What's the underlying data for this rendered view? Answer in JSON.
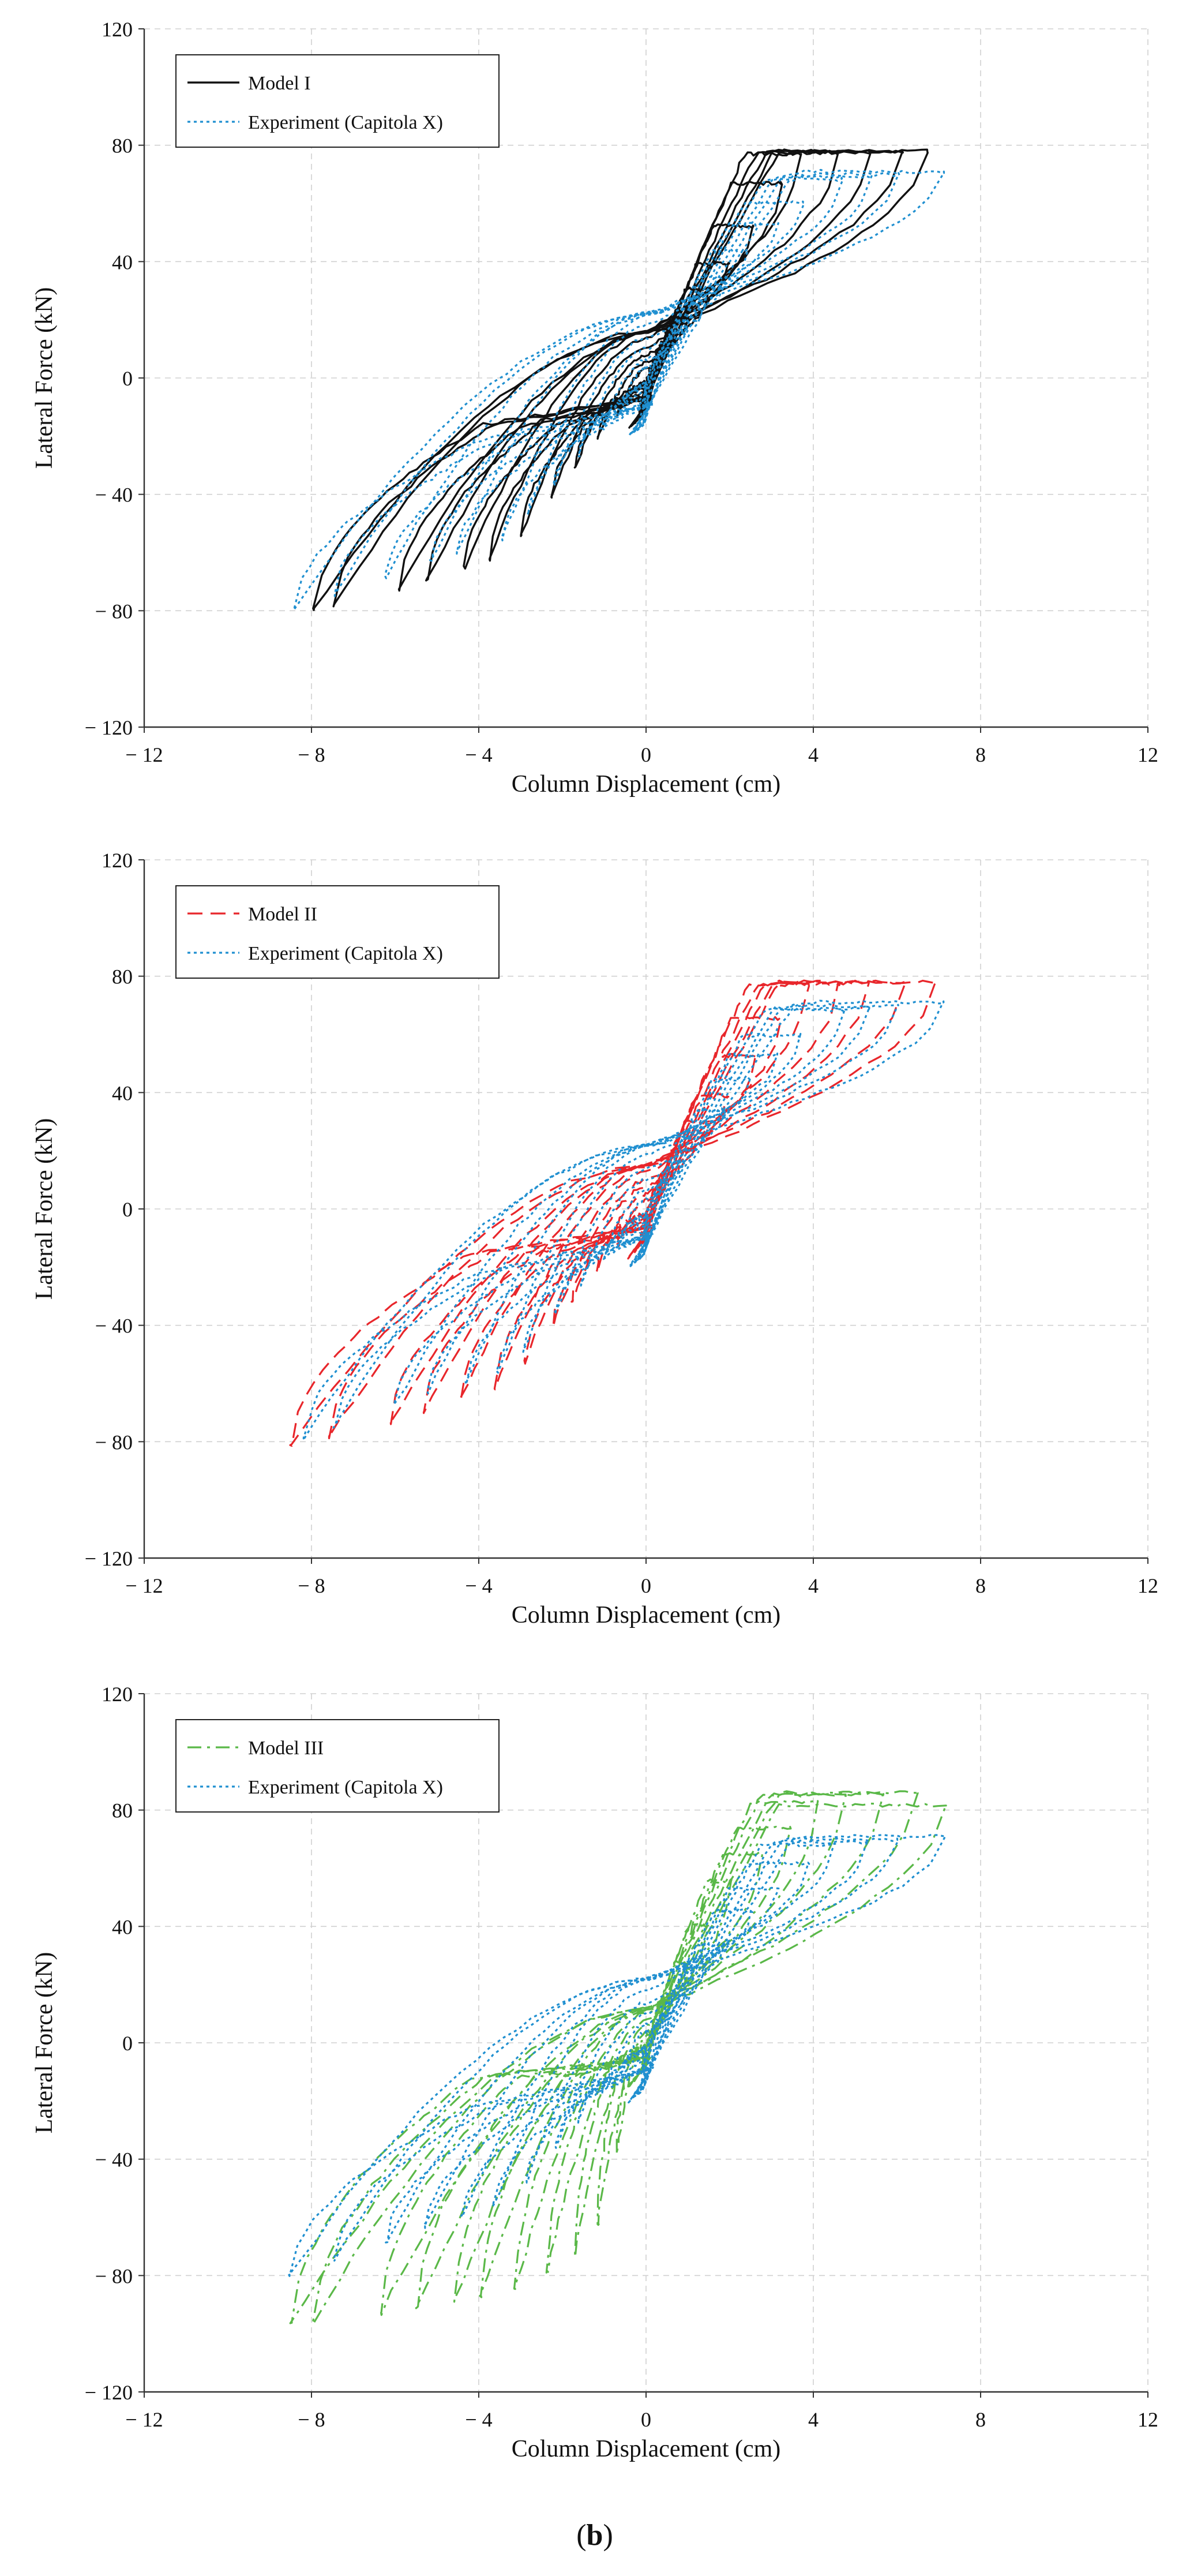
{
  "colors": {
    "experiment": "#1f8fd0",
    "model_i": "#111111",
    "model_ii": "#e8262b",
    "model_iii": "#5ab848",
    "grid": "#d0d0d0",
    "axis": "#333333"
  },
  "caption_prefix": "(",
  "caption_letter": "b",
  "caption_suffix": ")",
  "chart_data": [
    {
      "type": "line",
      "xlabel": "Column Displacement (cm)",
      "ylabel": "Lateral Force (kN)",
      "xlim": [
        -12,
        12
      ],
      "ylim": [
        -120,
        120
      ],
      "x_ticks": [
        -12,
        -8,
        -4,
        0,
        4,
        8,
        12
      ],
      "y_ticks": [
        -120,
        -80,
        -40,
        0,
        40,
        80,
        120
      ],
      "x_tick_labels": [
        "− 12",
        "− 8",
        "− 4",
        "0",
        "4",
        "8",
        "12"
      ],
      "y_tick_labels": [
        "− 120",
        "− 80",
        "− 40",
        "0",
        "40",
        "80",
        "120"
      ],
      "grid": true,
      "legend_position": "top-left",
      "series": [
        {
          "name": "Model I",
          "style": "solid",
          "color_key": "model_i",
          "amps": [
            0.6,
            1.0,
            1.5,
            2.0,
            2.6,
            3.2,
            3.8,
            4.5,
            5.3,
            6.0,
            6.8
          ],
          "peak_pos": [
            [
              2.0,
              40
            ],
            [
              3.7,
              77
            ],
            [
              5.9,
              78
            ],
            [
              6.9,
              78
            ]
          ],
          "peak_neg": [
            [
              -3.3,
              -60
            ],
            [
              -6.4,
              -75
            ],
            [
              -8.4,
              -81
            ]
          ],
          "pinch_force": 16,
          "stiffness": 24
        },
        {
          "name": "Experiment (Capitola X)",
          "style": "dotted",
          "color_key": "experiment",
          "amps": [
            0.5,
            0.9,
            1.4,
            1.9,
            2.5,
            3.1,
            3.8,
            4.6,
            5.4,
            6.2,
            7.0
          ],
          "peak_pos": [
            [
              2.5,
              45
            ],
            [
              4.4,
              68
            ],
            [
              7.0,
              71
            ]
          ],
          "peak_neg": [
            [
              -3.3,
              -55
            ],
            [
              -5.2,
              -63
            ],
            [
              -8.5,
              -80
            ]
          ],
          "pinch_force": 22,
          "stiffness": 18
        }
      ]
    },
    {
      "type": "line",
      "xlabel": "Column Displacement (cm)",
      "ylabel": "Lateral Force (kN)",
      "xlim": [
        -12,
        12
      ],
      "ylim": [
        -120,
        120
      ],
      "x_ticks": [
        -12,
        -8,
        -4,
        0,
        4,
        8,
        12
      ],
      "y_ticks": [
        -120,
        -80,
        -40,
        0,
        40,
        80,
        120
      ],
      "x_tick_labels": [
        "− 12",
        "− 8",
        "− 4",
        "0",
        "4",
        "8",
        "12"
      ],
      "y_tick_labels": [
        "− 120",
        "− 80",
        "− 40",
        "0",
        "40",
        "80",
        "120"
      ],
      "grid": true,
      "legend_position": "top-left",
      "series": [
        {
          "name": "Model II",
          "style": "dashed",
          "color_key": "model_ii",
          "amps": [
            0.6,
            1.0,
            1.5,
            2.0,
            2.6,
            3.2,
            3.8,
            4.5,
            5.3,
            6.1,
            7.0
          ],
          "peak_pos": [
            [
              2.0,
              40
            ],
            [
              3.8,
              77
            ],
            [
              6.0,
              78
            ],
            [
              7.0,
              78
            ]
          ],
          "peak_neg": [
            [
              -3.3,
              -60
            ],
            [
              -6.4,
              -75
            ],
            [
              -8.5,
              -81
            ]
          ],
          "pinch_force": 15,
          "stiffness": 24
        },
        {
          "name": "Experiment (Capitola X)",
          "style": "dotted",
          "color_key": "experiment",
          "amps": [
            0.5,
            0.9,
            1.4,
            1.9,
            2.5,
            3.1,
            3.8,
            4.6,
            5.4,
            6.2,
            7.0
          ],
          "peak_pos": [
            [
              2.5,
              45
            ],
            [
              4.4,
              68
            ],
            [
              7.0,
              71
            ]
          ],
          "peak_neg": [
            [
              -3.3,
              -55
            ],
            [
              -5.2,
              -63
            ],
            [
              -8.5,
              -80
            ]
          ],
          "pinch_force": 22,
          "stiffness": 18
        }
      ]
    },
    {
      "type": "line",
      "xlabel": "Column Displacement (cm)",
      "ylabel": "Lateral Force (kN)",
      "xlim": [
        -12,
        12
      ],
      "ylim": [
        -120,
        120
      ],
      "x_ticks": [
        -12,
        -8,
        -4,
        0,
        4,
        8,
        12
      ],
      "y_ticks": [
        -120,
        -80,
        -40,
        0,
        40,
        80,
        120
      ],
      "x_tick_labels": [
        "− 12",
        "− 8",
        "− 4",
        "0",
        "4",
        "8",
        "12"
      ],
      "y_tick_labels": [
        "− 120",
        "− 80",
        "− 40",
        "0",
        "40",
        "80",
        "120"
      ],
      "grid": true,
      "legend_position": "top-left",
      "series": [
        {
          "name": "Model III",
          "style": "dashdot",
          "color_key": "model_iii",
          "amps": [
            0.6,
            1.0,
            1.5,
            2.0,
            2.7,
            3.4,
            4.1,
            4.9,
            5.7,
            6.4,
            7.2
          ],
          "peak_pos": [
            [
              2.0,
              55
            ],
            [
              4.3,
              85
            ],
            [
              6.8,
              86
            ],
            [
              7.3,
              80
            ]
          ],
          "peak_neg": [
            [
              -1.3,
              -70
            ],
            [
              -3.2,
              -85
            ],
            [
              -7.5,
              -96
            ],
            [
              -8.6,
              -96
            ]
          ],
          "pinch_force": 12,
          "stiffness": 26
        },
        {
          "name": "Experiment (Capitola X)",
          "style": "dotted",
          "color_key": "experiment",
          "amps": [
            0.5,
            0.9,
            1.4,
            1.9,
            2.5,
            3.1,
            3.8,
            4.6,
            5.4,
            6.2,
            7.0
          ],
          "peak_pos": [
            [
              2.5,
              45
            ],
            [
              4.4,
              68
            ],
            [
              7.0,
              71
            ]
          ],
          "peak_neg": [
            [
              -3.3,
              -55
            ],
            [
              -5.2,
              -63
            ],
            [
              -8.5,
              -80
            ]
          ],
          "pinch_force": 22,
          "stiffness": 18
        }
      ]
    }
  ]
}
